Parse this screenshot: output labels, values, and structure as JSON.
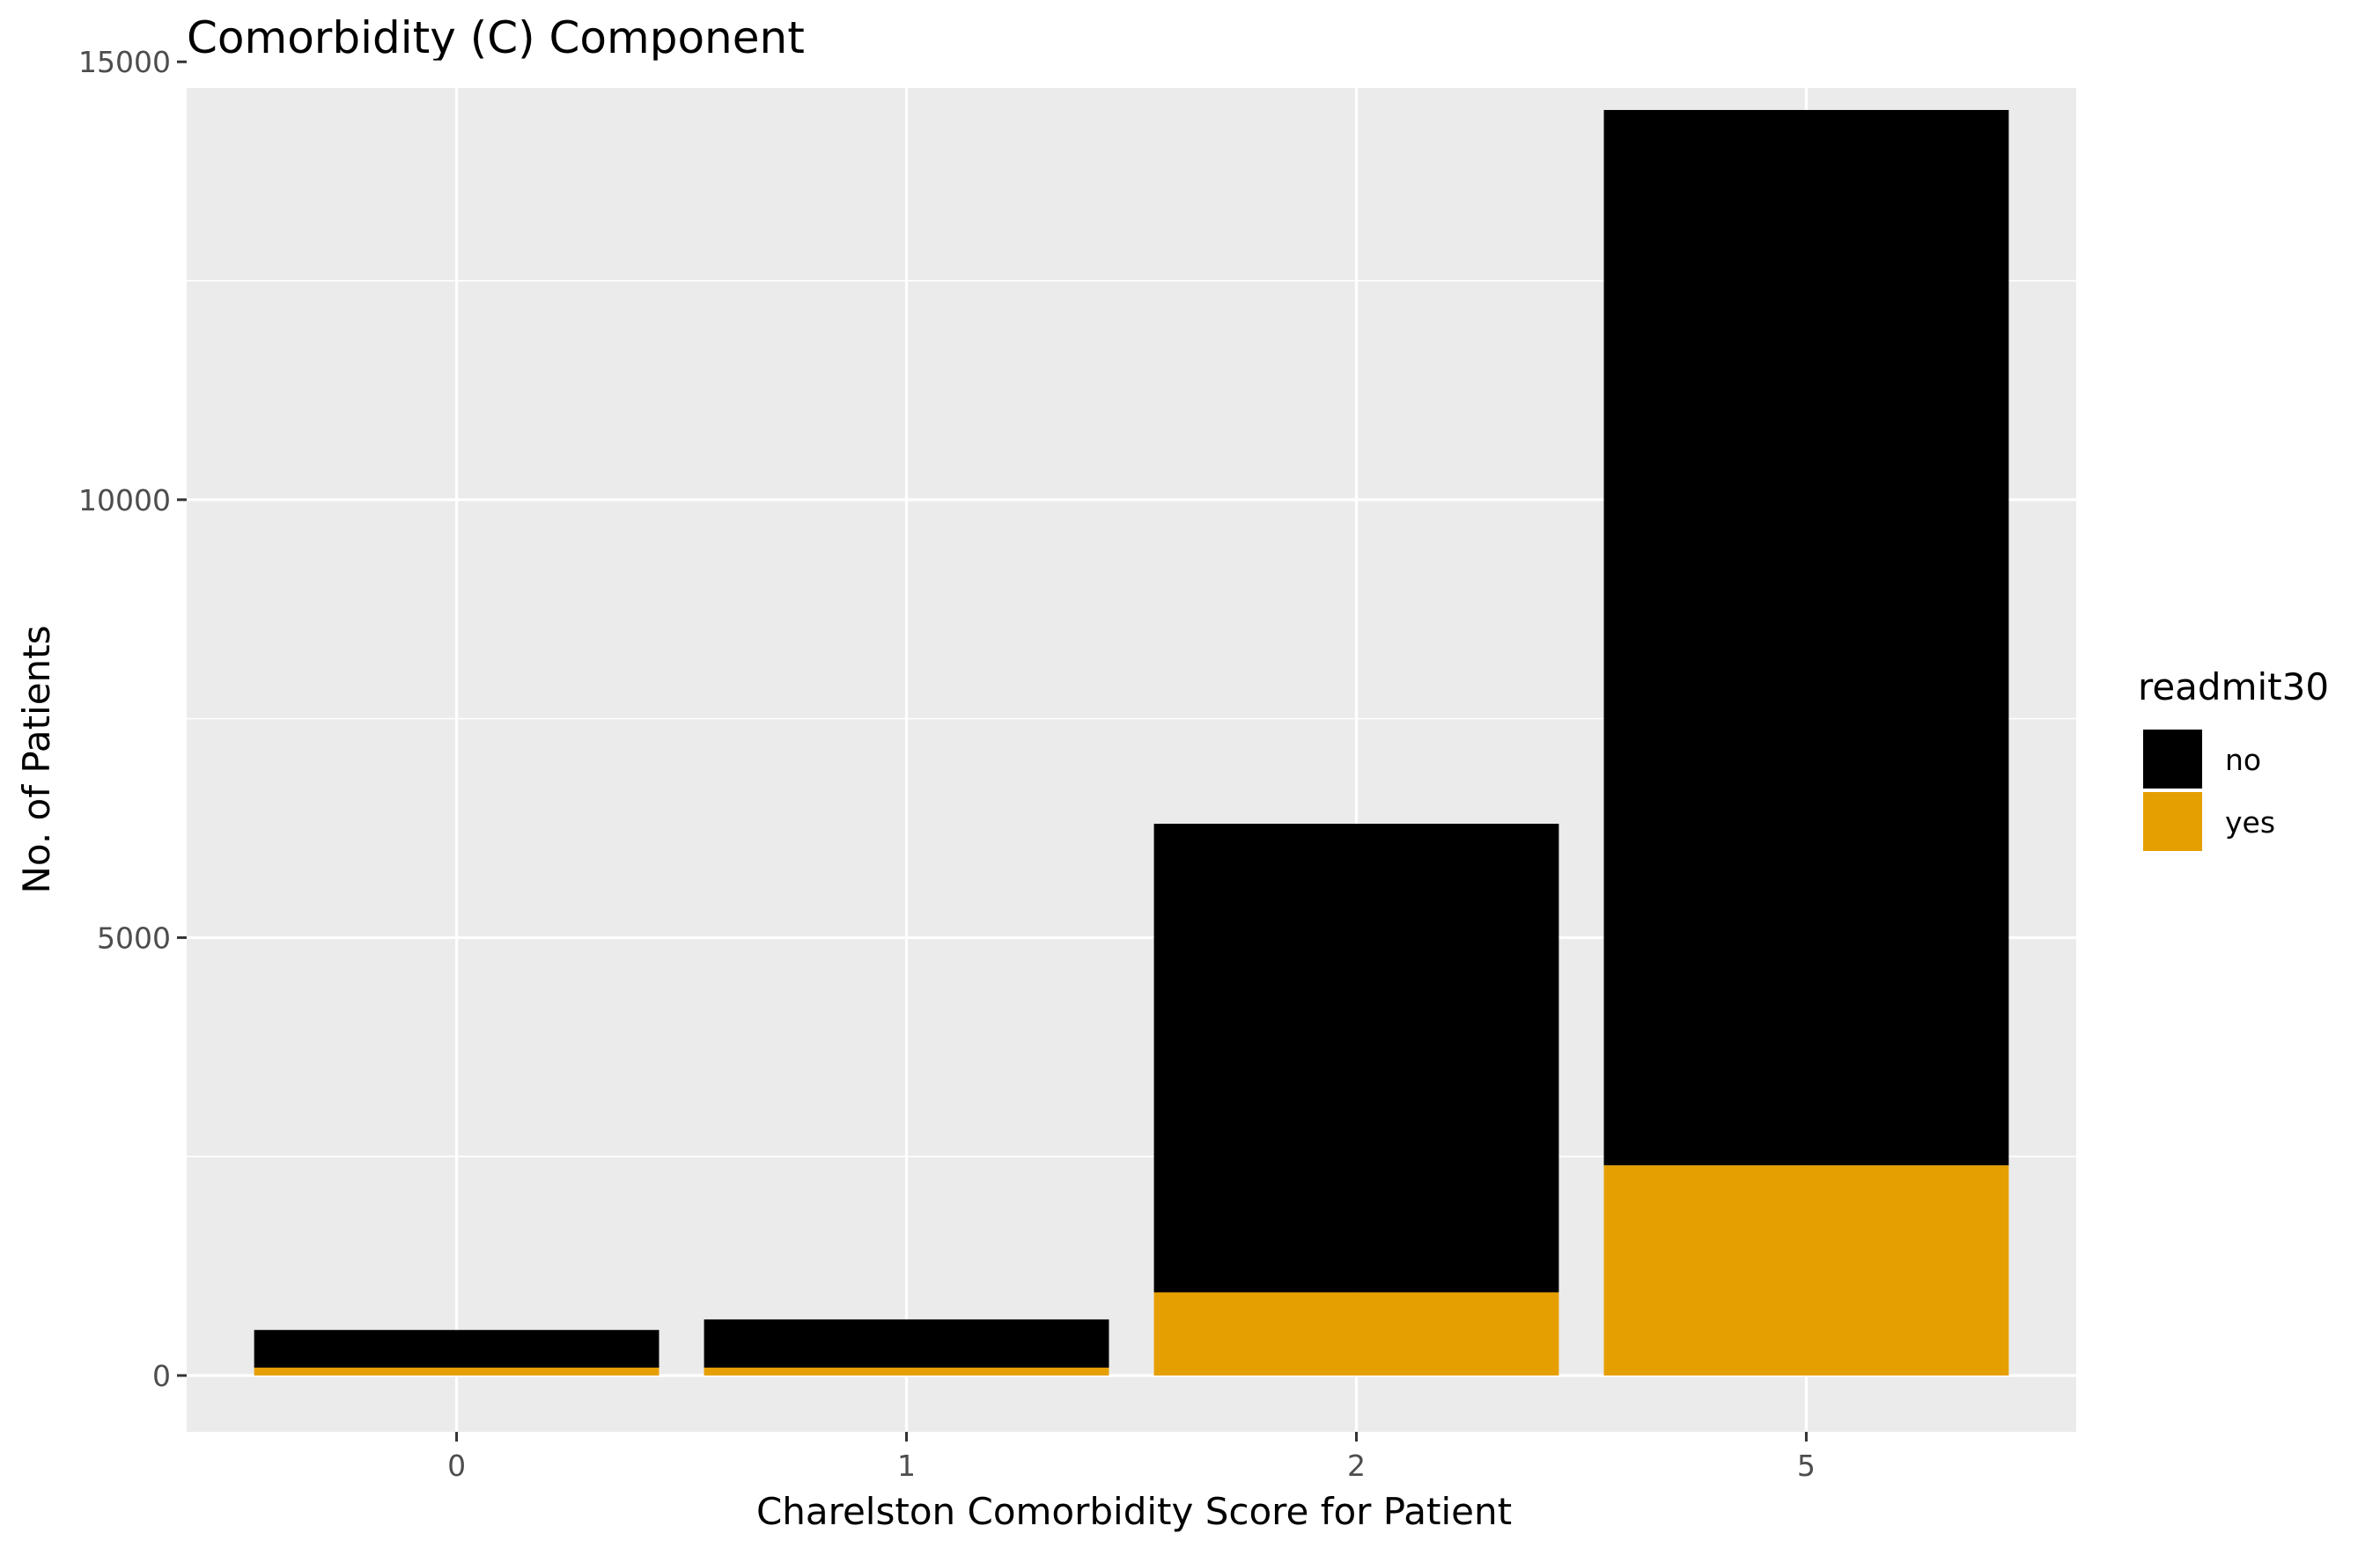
{
  "chart_data": {
    "type": "bar",
    "stacked": true,
    "title": "Comorbidity (C) Component",
    "xlabel": "Charelston Comorbidity Score for Patient",
    "ylabel": "No. of Patients",
    "categories": [
      "0",
      "1",
      "2",
      "5"
    ],
    "ylim": [
      0,
      15000
    ],
    "yticks": [
      0,
      5000,
      10000,
      15000
    ],
    "grid": true,
    "legend": {
      "title": "readmit30",
      "position": "right"
    },
    "series": [
      {
        "name": "yes",
        "color": "#E69F00",
        "values": [
          90,
          90,
          950,
          2400
        ]
      },
      {
        "name": "no",
        "color": "#000000",
        "values": [
          430,
          550,
          5350,
          12050
        ]
      }
    ]
  }
}
